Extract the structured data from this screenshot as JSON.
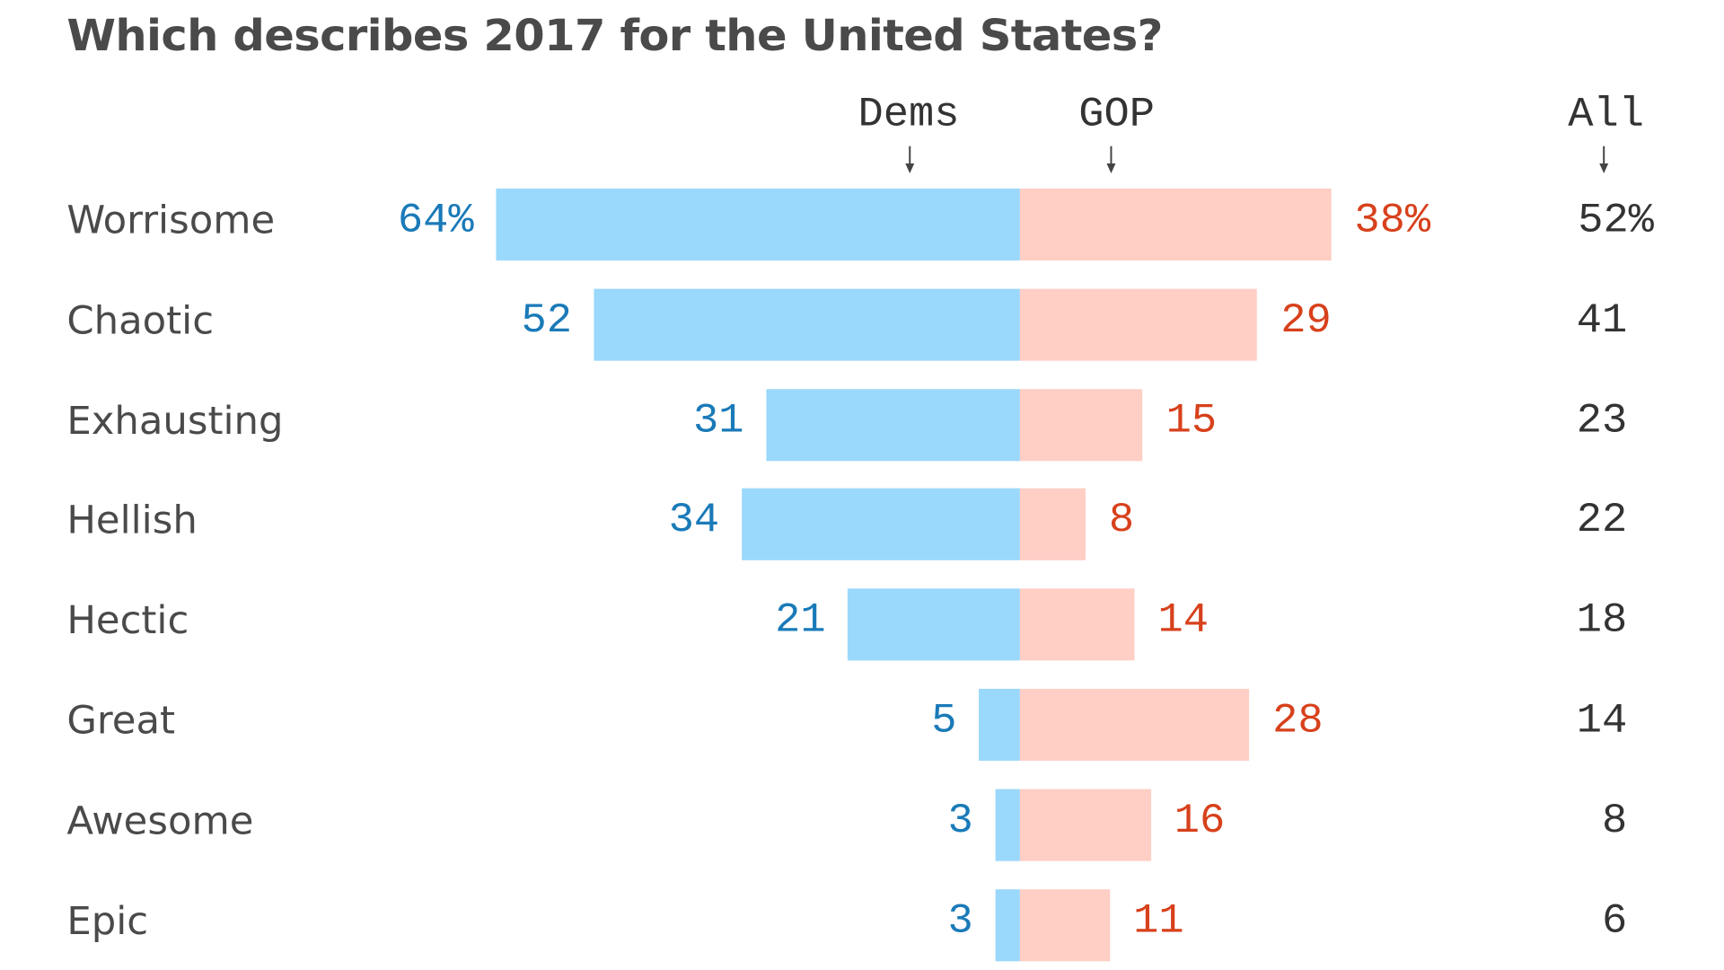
{
  "chart_data": {
    "type": "bar",
    "subtype": "diverging-horizontal-bar",
    "title": "Which describes 2017 for the United States?",
    "categories": [
      "Worrisome",
      "Chaotic",
      "Exhausting",
      "Hellish",
      "Hectic",
      "Great",
      "Awesome",
      "Epic"
    ],
    "series": [
      {
        "name": "Dems",
        "values": [
          64,
          52,
          31,
          34,
          21,
          5,
          3,
          3
        ],
        "color": "#9ad8fc",
        "label_color": "#1a7ab8",
        "direction": "left"
      },
      {
        "name": "GOP",
        "values": [
          38,
          29,
          15,
          8,
          14,
          28,
          16,
          11
        ],
        "color": "#ffcec4",
        "label_color": "#d7411c",
        "direction": "right"
      },
      {
        "name": "All",
        "values": [
          52,
          41,
          23,
          22,
          18,
          14,
          8,
          6
        ],
        "color": "#333333",
        "display": "text-column"
      }
    ],
    "value_labels": {
      "Dems": [
        "64%",
        "52",
        "31",
        "34",
        "21",
        "5",
        "3",
        "3"
      ],
      "GOP": [
        "38%",
        "29",
        "15",
        "8",
        "14",
        "28",
        "16",
        "11"
      ],
      "All": [
        "52%",
        "41",
        "23",
        "22",
        "18",
        "14",
        "8",
        "6"
      ]
    },
    "units": "percent",
    "xlabel": "",
    "ylabel": "",
    "xlim": [
      0,
      64
    ],
    "grid": false,
    "legend": "column headers above bars (Dems, GOP, All) with down arrows"
  },
  "headers": {
    "dems": "Dems",
    "gop": "GOP",
    "all": "All",
    "arrow_icon": "down-arrow"
  }
}
